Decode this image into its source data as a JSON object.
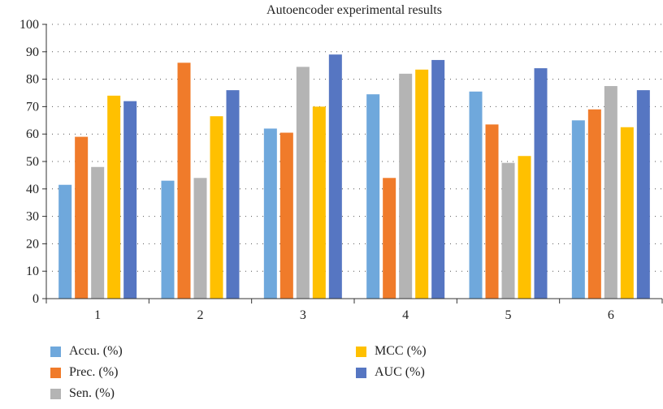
{
  "chart_data": {
    "type": "bar",
    "title": "Autoencoder experimental results",
    "xlabel": "",
    "ylabel": "",
    "categories": [
      "1",
      "2",
      "3",
      "4",
      "5",
      "6"
    ],
    "ylim": [
      0,
      100
    ],
    "yticks": [
      0,
      10,
      20,
      30,
      40,
      50,
      60,
      70,
      80,
      90,
      100
    ],
    "grid": "horizontal dotted",
    "legend_position": "bottom",
    "series": [
      {
        "name": "Accu. (%)",
        "color": "#6fa8dc",
        "values": [
          41.5,
          43,
          62,
          74.5,
          75.5,
          65
        ]
      },
      {
        "name": "Prec. (%)",
        "color": "#f07b2a",
        "values": [
          59,
          86,
          60.5,
          44,
          63.5,
          69
        ]
      },
      {
        "name": "Sen. (%)",
        "color": "#b4b4b4",
        "values": [
          48,
          44,
          84.5,
          82,
          49.5,
          77.5
        ]
      },
      {
        "name": "MCC (%)",
        "color": "#ffc000",
        "values": [
          74,
          66.5,
          70,
          83.5,
          52,
          62.5
        ]
      },
      {
        "name": "AUC (%)",
        "color": "#5676c2",
        "values": [
          72,
          76,
          89,
          87,
          84,
          76
        ]
      }
    ]
  }
}
